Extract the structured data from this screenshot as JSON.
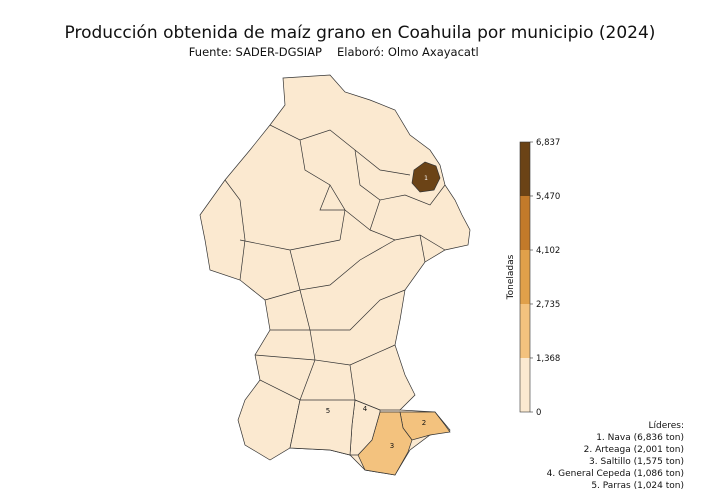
{
  "title": "Producción obtenida de maíz grano en Coahuila por municipio (2024)",
  "subtitle": {
    "source": "Fuente: SADER-DGSIAP",
    "author": "Elaboró: Olmo Axayacatl"
  },
  "colorbar": {
    "label": "Toneladas",
    "lim": [
      0,
      6837
    ],
    "ticks": [
      0,
      {
        "value": 1368,
        "label": "1,368"
      },
      {
        "value": 2735,
        "label": "2,735"
      },
      {
        "value": 4102,
        "label": "4,102"
      },
      {
        "value": 5470,
        "label": "5,470"
      },
      {
        "value": 6837,
        "label": "6,837"
      }
    ],
    "colors": [
      "#fbe9d0",
      "#f3c27e",
      "#e0a04a",
      "#c27a2a",
      "#6b4316"
    ]
  },
  "regions": [
    {
      "label": "1",
      "value": 6836
    },
    {
      "label": "2",
      "value": 2001
    },
    {
      "label": "3",
      "value": 1575
    },
    {
      "label": "4",
      "value": 1086
    },
    {
      "label": "5",
      "value": 1024
    }
  ],
  "leaders": {
    "heading": "Líderes:",
    "items": [
      "1. Nava (6,836 ton)",
      "2. Arteaga (2,001 ton)",
      "3. Saltillo (1,575 ton)",
      "4. General Cepeda (1,086 ton)",
      "5. Parras (1,024 ton)"
    ]
  }
}
